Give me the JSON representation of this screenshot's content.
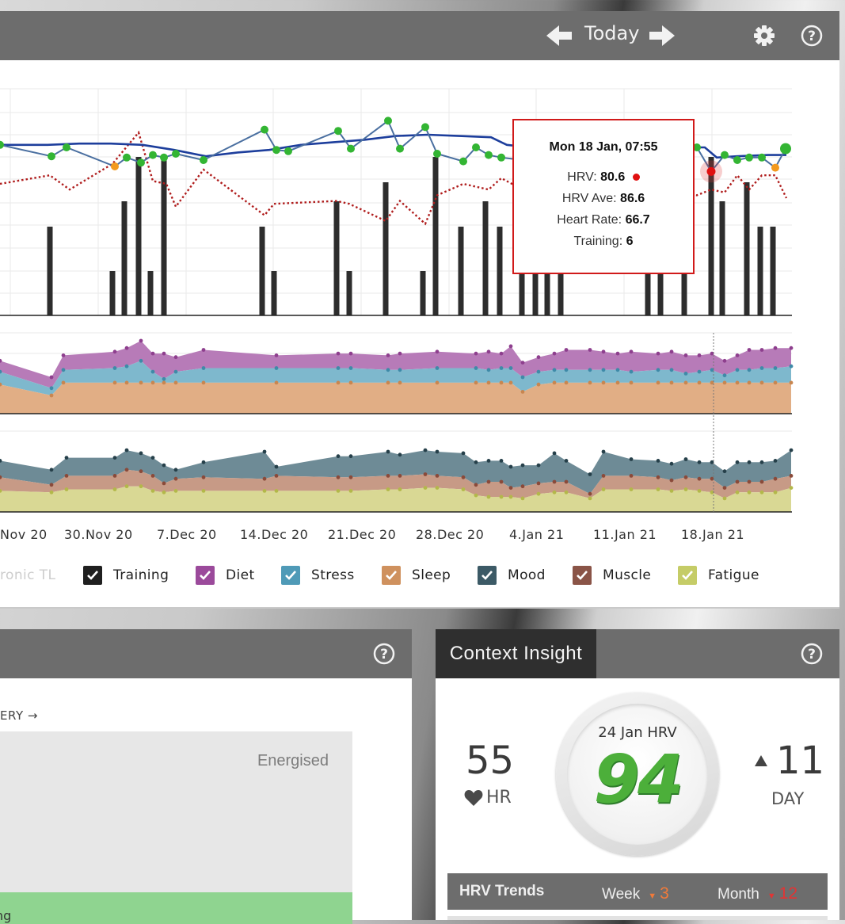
{
  "nav": {
    "today_label": "Today"
  },
  "chart_data": {
    "type": "combo",
    "x_ticks": [
      "Nov 20",
      "30.Nov 20",
      "7.Dec 20",
      "14.Dec 20",
      "21.Dec 20",
      "28.Dec 20",
      "4.Jan 21",
      "11.Jan 21",
      "18.Jan 21"
    ],
    "hrv_series": [
      [
        0,
        82
      ],
      [
        65,
        73
      ],
      [
        84,
        80
      ],
      [
        145,
        65
      ],
      [
        160,
        72
      ],
      [
        178,
        68
      ],
      [
        193,
        74
      ],
      [
        207,
        72
      ],
      [
        222,
        75
      ],
      [
        257,
        70
      ],
      [
        334,
        94
      ],
      [
        349,
        78
      ],
      [
        364,
        77
      ],
      [
        427,
        93
      ],
      [
        443,
        79
      ],
      [
        490,
        101
      ],
      [
        505,
        79
      ],
      [
        537,
        96
      ],
      [
        552,
        75
      ],
      [
        585,
        69
      ],
      [
        601,
        80
      ],
      [
        617,
        74
      ],
      [
        633,
        72
      ],
      [
        660,
        70
      ],
      [
        700,
        70
      ],
      [
        820,
        70
      ],
      [
        880,
        80
      ],
      [
        898,
        61
      ],
      [
        915,
        74
      ],
      [
        931,
        70
      ],
      [
        946,
        72
      ],
      [
        962,
        72
      ],
      [
        979,
        64
      ],
      [
        992,
        79
      ]
    ],
    "hrv_low_points": [
      [
        145,
        65
      ],
      [
        979,
        64
      ]
    ],
    "hrv_avg_series": [
      [
        0,
        82
      ],
      [
        60,
        82
      ],
      [
        100,
        83
      ],
      [
        140,
        83
      ],
      [
        180,
        82
      ],
      [
        220,
        78
      ],
      [
        260,
        73
      ],
      [
        300,
        76
      ],
      [
        340,
        78
      ],
      [
        380,
        82
      ],
      [
        420,
        84
      ],
      [
        460,
        86
      ],
      [
        500,
        89
      ],
      [
        540,
        90
      ],
      [
        580,
        89
      ],
      [
        620,
        88
      ],
      [
        640,
        82
      ],
      [
        670,
        80
      ],
      [
        700,
        80
      ],
      [
        740,
        80
      ],
      [
        780,
        80
      ],
      [
        820,
        80
      ],
      [
        860,
        80
      ],
      [
        890,
        80
      ],
      [
        905,
        72
      ],
      [
        930,
        73
      ],
      [
        970,
        74
      ],
      [
        993,
        74
      ]
    ],
    "training_bars": [
      [
        63,
        14
      ],
      [
        142,
        7
      ],
      [
        157,
        18
      ],
      [
        175,
        25
      ],
      [
        190,
        7
      ],
      [
        207,
        25
      ],
      [
        331,
        14
      ],
      [
        346,
        7
      ],
      [
        425,
        18
      ],
      [
        441,
        7
      ],
      [
        487,
        21
      ],
      [
        534,
        7
      ],
      [
        550,
        25
      ],
      [
        582,
        14
      ],
      [
        613,
        18
      ],
      [
        631,
        14
      ],
      [
        659,
        7
      ],
      [
        676,
        7
      ],
      [
        691,
        7
      ],
      [
        708,
        7
      ],
      [
        818,
        7
      ],
      [
        834,
        7
      ],
      [
        864,
        7
      ],
      [
        898,
        25
      ],
      [
        912,
        18
      ],
      [
        943,
        21
      ],
      [
        960,
        14
      ],
      [
        976,
        14
      ]
    ],
    "chronic_tl": [
      [
        0,
        40
      ],
      [
        63,
        43
      ],
      [
        88,
        38
      ],
      [
        142,
        47
      ],
      [
        175,
        58
      ],
      [
        193,
        41
      ],
      [
        210,
        40
      ],
      [
        222,
        32
      ],
      [
        257,
        45
      ],
      [
        334,
        29
      ],
      [
        346,
        33
      ],
      [
        425,
        34
      ],
      [
        441,
        33
      ],
      [
        487,
        27
      ],
      [
        505,
        34
      ],
      [
        537,
        26
      ],
      [
        552,
        36
      ],
      [
        585,
        40
      ],
      [
        617,
        38
      ],
      [
        633,
        42
      ],
      [
        660,
        38
      ],
      [
        700,
        38
      ],
      [
        820,
        38
      ],
      [
        880,
        36
      ],
      [
        898,
        38
      ],
      [
        915,
        37
      ],
      [
        931,
        43
      ],
      [
        946,
        38
      ],
      [
        962,
        43
      ],
      [
        979,
        43
      ],
      [
        993,
        35
      ]
    ],
    "wellness_top": [
      [
        0,
        29
      ],
      [
        65,
        20
      ],
      [
        80,
        32
      ],
      [
        145,
        34
      ],
      [
        160,
        36
      ],
      [
        178,
        40
      ],
      [
        193,
        33
      ],
      [
        207,
        33
      ],
      [
        222,
        31
      ],
      [
        257,
        35
      ],
      [
        349,
        32
      ],
      [
        427,
        33
      ],
      [
        443,
        33
      ],
      [
        490,
        32
      ],
      [
        505,
        33
      ],
      [
        552,
        34
      ],
      [
        601,
        33
      ],
      [
        617,
        34
      ],
      [
        633,
        33
      ],
      [
        645,
        37
      ],
      [
        660,
        28
      ],
      [
        680,
        31
      ],
      [
        700,
        33
      ],
      [
        715,
        35
      ],
      [
        745,
        35
      ],
      [
        762,
        34
      ],
      [
        780,
        33
      ],
      [
        797,
        34
      ],
      [
        831,
        33
      ],
      [
        848,
        34
      ],
      [
        866,
        32
      ],
      [
        883,
        32
      ],
      [
        899,
        33
      ],
      [
        915,
        29
      ],
      [
        931,
        32
      ],
      [
        946,
        35
      ],
      [
        962,
        35
      ],
      [
        979,
        36
      ],
      [
        999,
        36
      ]
    ],
    "wellness_mid": [
      [
        0,
        23
      ],
      [
        65,
        14
      ],
      [
        80,
        24
      ],
      [
        145,
        25
      ],
      [
        160,
        26
      ],
      [
        178,
        29
      ],
      [
        193,
        23
      ],
      [
        207,
        19
      ],
      [
        222,
        23
      ],
      [
        257,
        25
      ],
      [
        349,
        25
      ],
      [
        427,
        25
      ],
      [
        443,
        25
      ],
      [
        490,
        24
      ],
      [
        505,
        24
      ],
      [
        552,
        25
      ],
      [
        601,
        25
      ],
      [
        617,
        24
      ],
      [
        633,
        25
      ],
      [
        645,
        25
      ],
      [
        660,
        20
      ],
      [
        680,
        23
      ],
      [
        700,
        24
      ],
      [
        715,
        24
      ],
      [
        745,
        24
      ],
      [
        762,
        24
      ],
      [
        780,
        24
      ],
      [
        797,
        23
      ],
      [
        831,
        24
      ],
      [
        848,
        24
      ],
      [
        866,
        22
      ],
      [
        883,
        23
      ],
      [
        899,
        24
      ],
      [
        915,
        21
      ],
      [
        931,
        24
      ],
      [
        946,
        24
      ],
      [
        962,
        25
      ],
      [
        979,
        25
      ],
      [
        999,
        26
      ]
    ],
    "wellness_low": [
      [
        0,
        16
      ],
      [
        65,
        10
      ],
      [
        80,
        17
      ],
      [
        145,
        17
      ],
      [
        160,
        17
      ],
      [
        178,
        17
      ],
      [
        193,
        17
      ],
      [
        207,
        17
      ],
      [
        222,
        17
      ],
      [
        257,
        17
      ],
      [
        349,
        17
      ],
      [
        427,
        17
      ],
      [
        443,
        17
      ],
      [
        490,
        17
      ],
      [
        505,
        17
      ],
      [
        552,
        17
      ],
      [
        601,
        17
      ],
      [
        617,
        17
      ],
      [
        633,
        17
      ],
      [
        645,
        17
      ],
      [
        660,
        12
      ],
      [
        680,
        16
      ],
      [
        700,
        17
      ],
      [
        715,
        17
      ],
      [
        745,
        17
      ],
      [
        762,
        17
      ],
      [
        780,
        17
      ],
      [
        797,
        17
      ],
      [
        831,
        17
      ],
      [
        848,
        17
      ],
      [
        866,
        17
      ],
      [
        883,
        17
      ],
      [
        899,
        17
      ],
      [
        915,
        17
      ],
      [
        931,
        17
      ],
      [
        946,
        17
      ],
      [
        962,
        17
      ],
      [
        979,
        17
      ],
      [
        999,
        17
      ]
    ],
    "mood_series": [
      [
        0,
        34
      ],
      [
        65,
        28
      ],
      [
        84,
        36
      ],
      [
        145,
        36
      ],
      [
        160,
        41
      ],
      [
        178,
        39
      ],
      [
        193,
        36
      ],
      [
        207,
        31
      ],
      [
        222,
        28
      ],
      [
        257,
        33
      ],
      [
        334,
        40
      ],
      [
        349,
        30
      ],
      [
        427,
        37
      ],
      [
        443,
        37
      ],
      [
        490,
        40
      ],
      [
        505,
        38
      ],
      [
        537,
        41
      ],
      [
        552,
        40
      ],
      [
        585,
        39
      ],
      [
        601,
        33
      ],
      [
        617,
        34
      ],
      [
        633,
        34
      ],
      [
        645,
        30
      ],
      [
        660,
        31
      ],
      [
        680,
        31
      ],
      [
        700,
        39
      ],
      [
        715,
        34
      ],
      [
        745,
        25
      ],
      [
        762,
        40
      ],
      [
        797,
        35
      ],
      [
        831,
        34
      ],
      [
        848,
        32
      ],
      [
        866,
        35
      ],
      [
        883,
        33
      ],
      [
        899,
        33
      ],
      [
        915,
        27
      ],
      [
        931,
        33
      ],
      [
        946,
        33
      ],
      [
        962,
        33
      ],
      [
        979,
        34
      ],
      [
        999,
        41
      ]
    ],
    "muscle_series": [
      [
        0,
        23
      ],
      [
        65,
        18
      ],
      [
        84,
        24
      ],
      [
        145,
        24
      ],
      [
        160,
        28
      ],
      [
        178,
        27
      ],
      [
        193,
        24
      ],
      [
        207,
        19
      ],
      [
        222,
        22
      ],
      [
        257,
        23
      ],
      [
        334,
        22
      ],
      [
        349,
        24
      ],
      [
        427,
        23
      ],
      [
        443,
        23
      ],
      [
        490,
        24
      ],
      [
        505,
        24
      ],
      [
        537,
        25
      ],
      [
        552,
        24
      ],
      [
        585,
        23
      ],
      [
        601,
        18
      ],
      [
        617,
        20
      ],
      [
        633,
        20
      ],
      [
        645,
        16
      ],
      [
        660,
        17
      ],
      [
        680,
        19
      ],
      [
        700,
        20
      ],
      [
        715,
        20
      ],
      [
        745,
        12
      ],
      [
        762,
        24
      ],
      [
        797,
        24
      ],
      [
        831,
        23
      ],
      [
        848,
        21
      ],
      [
        866,
        23
      ],
      [
        883,
        22
      ],
      [
        899,
        22
      ],
      [
        915,
        16
      ],
      [
        931,
        20
      ],
      [
        946,
        20
      ],
      [
        962,
        20
      ],
      [
        979,
        22
      ],
      [
        999,
        24
      ]
    ],
    "fatigue_series": [
      [
        0,
        14
      ],
      [
        65,
        13
      ],
      [
        84,
        15
      ],
      [
        145,
        15
      ],
      [
        160,
        17
      ],
      [
        178,
        17
      ],
      [
        193,
        14
      ],
      [
        207,
        13
      ],
      [
        222,
        14
      ],
      [
        257,
        14
      ],
      [
        334,
        14
      ],
      [
        349,
        14
      ],
      [
        427,
        14
      ],
      [
        443,
        14
      ],
      [
        490,
        15
      ],
      [
        505,
        15
      ],
      [
        537,
        16
      ],
      [
        552,
        16
      ],
      [
        585,
        15
      ],
      [
        601,
        11
      ],
      [
        617,
        10
      ],
      [
        633,
        10
      ],
      [
        645,
        10
      ],
      [
        660,
        9
      ],
      [
        680,
        12
      ],
      [
        700,
        13
      ],
      [
        715,
        13
      ],
      [
        745,
        9
      ],
      [
        762,
        15
      ],
      [
        797,
        15
      ],
      [
        831,
        15
      ],
      [
        848,
        14
      ],
      [
        866,
        15
      ],
      [
        883,
        14
      ],
      [
        899,
        13
      ],
      [
        915,
        9
      ],
      [
        931,
        13
      ],
      [
        946,
        13
      ],
      [
        962,
        13
      ],
      [
        979,
        13
      ],
      [
        999,
        16
      ]
    ],
    "tooltip": {
      "title": "Mon 18 Jan, 07:55",
      "hrv_label": "HRV:",
      "hrv_value": "80.6",
      "hrv_ave_label": "HRV Ave:",
      "hrv_ave_value": "86.6",
      "hr_label": "Heart Rate:",
      "hr_value": "66.7",
      "training_label": "Training:",
      "training_value": "6"
    },
    "legend": [
      {
        "label": "Chronic TL",
        "color": "#cfcfcf",
        "partial": "ronic TL"
      },
      {
        "label": "Training",
        "color": "#1f1f1f"
      },
      {
        "label": "Diet",
        "color": "#9b4a9b"
      },
      {
        "label": "Stress",
        "color": "#4f9ab7"
      },
      {
        "label": "Sleep",
        "color": "#cf915e"
      },
      {
        "label": "Mood",
        "color": "#3c5a66"
      },
      {
        "label": "Muscle",
        "color": "#8a5447"
      },
      {
        "label": "Fatigue",
        "color": "#c5cc67"
      }
    ]
  },
  "lower_left": {
    "link_text": "ERY →",
    "energised_label": "Energised",
    "green_text": "ng"
  },
  "context_insight": {
    "tab_label": "Context Insight",
    "hr_value": "55",
    "hr_label": "HR",
    "gauge_title": "24 Jan HRV",
    "gauge_value": "94",
    "day_value": "11",
    "day_label": "DAY",
    "trends_title": "HRV Trends",
    "week_label": "Week",
    "week_value": "3",
    "month_label": "Month",
    "month_value": "12"
  },
  "colors": {
    "header_bg": "#6d6d6d",
    "hrv_line": "#4a6fa0",
    "hrv_avg_line": "#1d3e9c",
    "hrv_point": "#33b533",
    "hrv_low_point": "#f39a1e",
    "tooltip_border": "#d11a1a",
    "chronic_tl": "#b01d1d",
    "trend_accent": "#f07a3a",
    "trend_down": "#e23434",
    "gauge_green": "#4caf3a"
  }
}
